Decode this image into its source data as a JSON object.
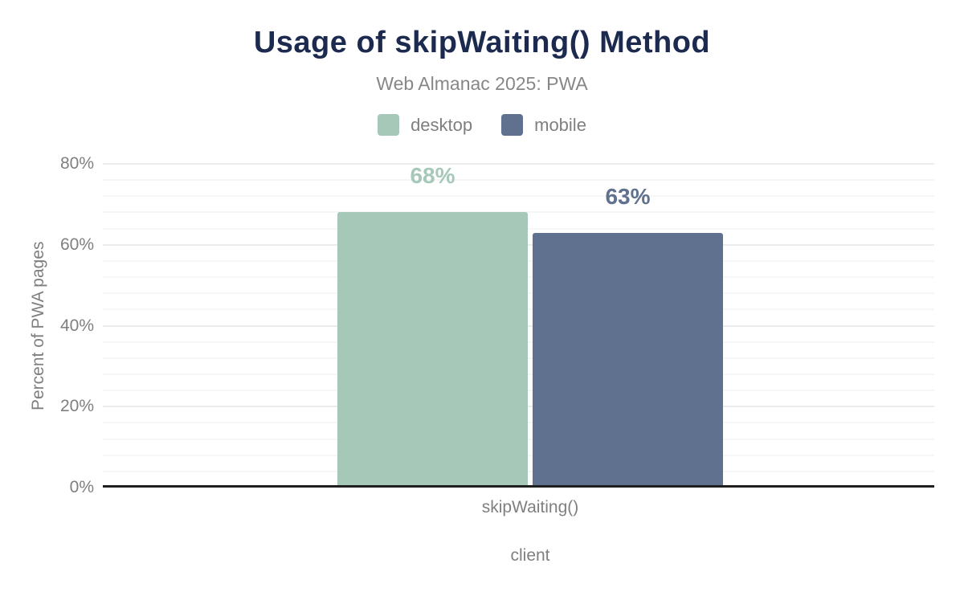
{
  "chart_data": {
    "type": "bar",
    "title": "Usage of skipWaiting() Method",
    "subtitle": "Web Almanac 2025: PWA",
    "categories": [
      "skipWaiting()"
    ],
    "series": [
      {
        "name": "desktop",
        "values": [
          68
        ],
        "value_labels": [
          "68%"
        ],
        "color": "#a5c8b9"
      },
      {
        "name": "mobile",
        "values": [
          63
        ],
        "value_labels": [
          "63%"
        ],
        "color": "#5f718e"
      }
    ],
    "xlabel": "client",
    "ylabel": "Percent of PWA pages",
    "ylim": [
      0,
      80
    ],
    "ytick_values": [
      0,
      20,
      40,
      60,
      80
    ],
    "ytick_labels": [
      "0%",
      "20%",
      "40%",
      "60%",
      "80%"
    ],
    "minor_grid_step": 4,
    "grid": "horizontal",
    "legend_position": "top"
  },
  "colors": {
    "title": "#1b2a4e",
    "subtitle": "#878787",
    "secondary_text": "#7f7f7f",
    "axis_line": "#1f1f1f",
    "grid_major": "#ececec",
    "grid_minor": "#f6f6f6",
    "desktop": "#a5c8b9",
    "mobile": "#5f718e",
    "background": "#ffffff"
  }
}
